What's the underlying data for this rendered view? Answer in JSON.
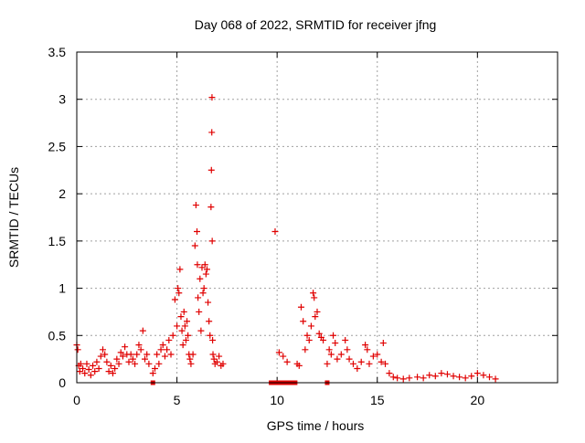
{
  "chart_data": {
    "type": "scatter",
    "title": "Day 068 of 2022, SRMTID for receiver jfng",
    "xlabel": "GPS time / hours",
    "ylabel": "SRMTID / TECUs",
    "xlim": [
      0,
      24
    ],
    "ylim": [
      0,
      3.5
    ],
    "xticks": [
      0,
      5,
      10,
      15,
      20
    ],
    "xtick_labels": [
      "0",
      "5",
      "10",
      "15",
      "20"
    ],
    "yticks": [
      0,
      0.5,
      1,
      1.5,
      2,
      2.5,
      3,
      3.5
    ],
    "ytick_labels": [
      "0",
      "0.5",
      "1",
      "1.5",
      "2",
      "2.5",
      "3",
      "3.5"
    ],
    "grid": true,
    "marker": "+",
    "color": "#e00000",
    "series": [
      {
        "name": "SRMTID",
        "x": [
          0.0,
          0.05,
          0.1,
          0.15,
          0.2,
          0.3,
          0.4,
          0.5,
          0.6,
          0.7,
          0.8,
          0.9,
          1.0,
          1.1,
          1.2,
          1.3,
          1.4,
          1.5,
          1.6,
          1.7,
          1.8,
          1.9,
          2.0,
          2.1,
          2.2,
          2.3,
          2.4,
          2.5,
          2.6,
          2.7,
          2.8,
          2.9,
          3.0,
          3.1,
          3.2,
          3.3,
          3.4,
          3.5,
          3.6,
          3.8,
          3.9,
          4.0,
          4.1,
          4.2,
          4.3,
          4.4,
          4.5,
          4.6,
          4.7,
          4.8,
          4.9,
          5.0,
          5.05,
          5.1,
          5.15,
          5.2,
          5.25,
          5.3,
          5.35,
          5.4,
          5.45,
          5.5,
          5.55,
          5.6,
          5.65,
          5.7,
          5.8,
          5.9,
          5.95,
          6.0,
          6.02,
          6.05,
          6.1,
          6.15,
          6.2,
          6.25,
          6.3,
          6.35,
          6.4,
          6.45,
          6.5,
          6.55,
          6.6,
          6.65,
          6.7,
          6.72,
          6.74,
          6.75,
          6.76,
          6.78,
          6.8,
          6.85,
          6.9,
          7.0,
          7.1,
          7.2,
          7.3,
          9.9,
          10.1,
          10.3,
          10.5,
          11.0,
          11.1,
          11.2,
          11.3,
          11.4,
          11.5,
          11.6,
          11.7,
          11.8,
          11.85,
          11.9,
          12.0,
          12.1,
          12.2,
          12.3,
          12.5,
          12.6,
          12.7,
          12.8,
          12.9,
          13.0,
          13.2,
          13.4,
          13.5,
          13.6,
          13.8,
          14.0,
          14.2,
          14.4,
          14.5,
          14.6,
          14.8,
          15.0,
          15.2,
          15.3,
          15.4,
          15.6,
          15.8,
          16.0,
          16.3,
          16.6,
          17.0,
          17.3,
          17.6,
          17.9,
          18.2,
          18.5,
          18.8,
          19.1,
          19.4,
          19.7,
          20.0,
          20.3,
          20.6,
          20.9
        ],
        "y": [
          0.4,
          0.35,
          0.18,
          0.12,
          0.2,
          0.15,
          0.1,
          0.2,
          0.14,
          0.08,
          0.18,
          0.12,
          0.22,
          0.15,
          0.28,
          0.35,
          0.3,
          0.22,
          0.12,
          0.18,
          0.1,
          0.15,
          0.25,
          0.2,
          0.32,
          0.28,
          0.38,
          0.3,
          0.22,
          0.3,
          0.25,
          0.2,
          0.3,
          0.4,
          0.35,
          0.55,
          0.25,
          0.3,
          0.2,
          0.1,
          0.15,
          0.3,
          0.2,
          0.35,
          0.4,
          0.28,
          0.35,
          0.45,
          0.3,
          0.5,
          0.88,
          0.6,
          1.0,
          0.95,
          1.2,
          0.7,
          0.55,
          0.4,
          0.75,
          0.6,
          0.45,
          0.65,
          0.5,
          0.3,
          0.25,
          0.2,
          0.3,
          1.45,
          1.88,
          1.6,
          1.25,
          0.9,
          0.75,
          1.1,
          0.55,
          1.22,
          0.95,
          1.0,
          1.25,
          1.15,
          1.2,
          0.85,
          0.65,
          0.5,
          1.86,
          2.25,
          2.65,
          3.02,
          1.5,
          0.45,
          0.3,
          0.25,
          0.2,
          0.22,
          0.28,
          0.18,
          0.2,
          1.6,
          0.32,
          0.28,
          0.22,
          0.2,
          0.18,
          0.8,
          0.65,
          0.35,
          0.5,
          0.45,
          0.6,
          0.95,
          0.9,
          0.7,
          0.75,
          0.52,
          0.48,
          0.45,
          0.2,
          0.35,
          0.3,
          0.5,
          0.42,
          0.25,
          0.3,
          0.45,
          0.35,
          0.25,
          0.2,
          0.15,
          0.22,
          0.4,
          0.35,
          0.2,
          0.28,
          0.3,
          0.22,
          0.42,
          0.2,
          0.1,
          0.06,
          0.05,
          0.04,
          0.05,
          0.06,
          0.05,
          0.08,
          0.07,
          0.1,
          0.09,
          0.07,
          0.06,
          0.05,
          0.07,
          0.1,
          0.08,
          0.06,
          0.04
        ]
      },
      {
        "name": "zero-level markers",
        "marker": "square",
        "x": [
          3.8,
          9.7,
          9.9,
          10.1,
          10.3,
          10.5,
          10.7,
          10.9,
          12.5
        ],
        "y": [
          0,
          0,
          0,
          0,
          0,
          0,
          0,
          0,
          0
        ]
      }
    ]
  }
}
